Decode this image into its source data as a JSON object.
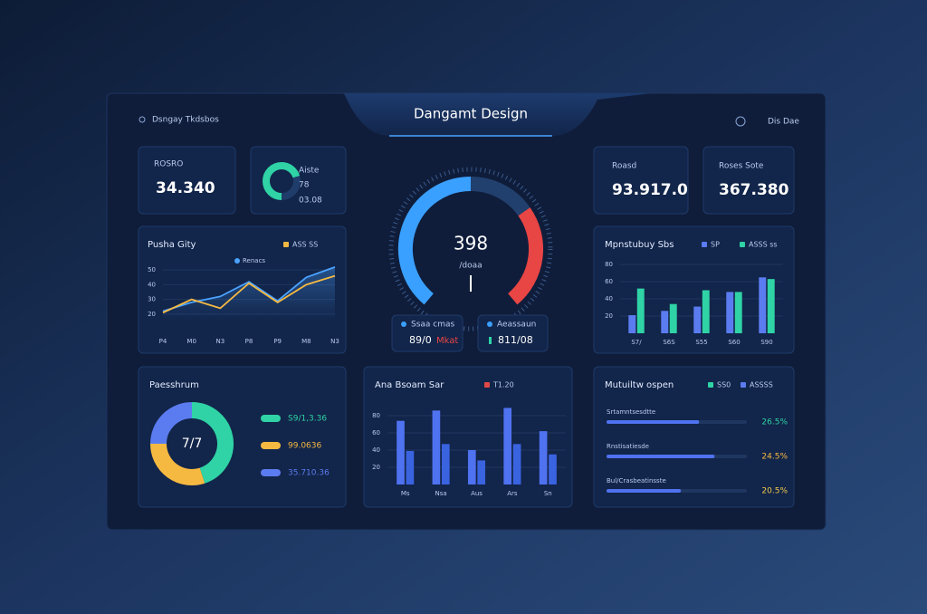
{
  "header": {
    "title": "Dangamt Design",
    "left": "Dsngay Tkdsbos",
    "right": "Dis Dae"
  },
  "kpis": [
    {
      "label": "ROSRO",
      "value": "34.340"
    },
    {
      "label": "Roasd",
      "value": "93.917.0"
    },
    {
      "label": "Roses Sote",
      "value": "367.380"
    }
  ],
  "mini_card": {
    "lines": [
      "Aiste",
      "78",
      "03.08"
    ]
  },
  "gauge": {
    "value": "398",
    "unit": "/doaa"
  },
  "pills": [
    {
      "label": "Ssaa cmas",
      "value": "89/0",
      "extra": "Mkat"
    },
    {
      "label": "Aeassaun",
      "value": "811/08"
    }
  ],
  "chart_data": [
    {
      "type": "line",
      "title": "Pusha Gity",
      "categories": [
        "P4",
        "M0",
        "N3",
        "P8",
        "P9",
        "M8",
        "N3"
      ],
      "series": [
        {
          "name": "Renacs",
          "color": "#4aa3ff",
          "values": [
            22,
            28,
            32,
            42,
            29,
            45,
            52
          ]
        },
        {
          "name": "ASS SS",
          "color": "#f5b942",
          "values": [
            21,
            30,
            24,
            41,
            28,
            40,
            46
          ]
        }
      ],
      "ylim": [
        15,
        55
      ],
      "yticks": [
        20,
        30,
        40,
        50
      ]
    },
    {
      "type": "bar",
      "title": "Mpnstubuy Sbs",
      "categories": [
        "S7/",
        "S6S",
        "S55",
        "S60",
        "S90"
      ],
      "series": [
        {
          "name": "SP",
          "color": "#5b7cf0",
          "values": [
            21,
            26,
            31,
            48,
            65
          ]
        },
        {
          "name": "ASSS ss",
          "color": "#2fd3a5",
          "values": [
            52,
            34,
            50,
            48,
            63
          ]
        }
      ],
      "ylim": [
        0,
        80
      ],
      "yticks": [
        20,
        40,
        60,
        80
      ]
    },
    {
      "type": "pie",
      "title": "Paesshrum",
      "center_label": "7/7",
      "categories": [
        "S9/1,3.36",
        "99.0636",
        "35.710.36"
      ],
      "values": [
        45,
        30,
        25
      ],
      "colors": [
        "#2fd3a5",
        "#f5b942",
        "#5b7cf0"
      ]
    },
    {
      "type": "bar",
      "title": "Ana Bsoam Sar",
      "categories": [
        "Ms",
        "Nsa",
        "Aus",
        "Ars",
        "Sn"
      ],
      "series": [
        {
          "name": "T1.20",
          "color": "#4f72f0",
          "values": [
            74,
            86,
            40,
            89,
            62
          ]
        },
        {
          "color": "#3a63e0",
          "values": [
            39,
            47,
            28,
            47,
            35
          ]
        }
      ],
      "legend_color": "#e04848",
      "ylim": [
        0,
        100
      ],
      "yticks": [
        20,
        40,
        60,
        80
      ]
    },
    {
      "type": "progress",
      "title": "Mutuiltw ospen",
      "legend": [
        {
          "name": "SS0",
          "color": "#2fd3a5"
        },
        {
          "name": "ASSSS",
          "color": "#5b7cf0"
        }
      ],
      "categories": [
        "Srtamntsesdtte",
        "Rnstisatiesde",
        "Bul/Crasbeatinsste"
      ],
      "values": [
        66,
        77,
        53
      ],
      "xlim": [
        0,
        100
      ],
      "side_labels": [
        "26.5%",
        "24.5%",
        "20.5%"
      ],
      "side_colors": [
        "#2fd3a5",
        "#f5b942",
        "#f2c94c"
      ],
      "color": "#4f72f0"
    }
  ]
}
